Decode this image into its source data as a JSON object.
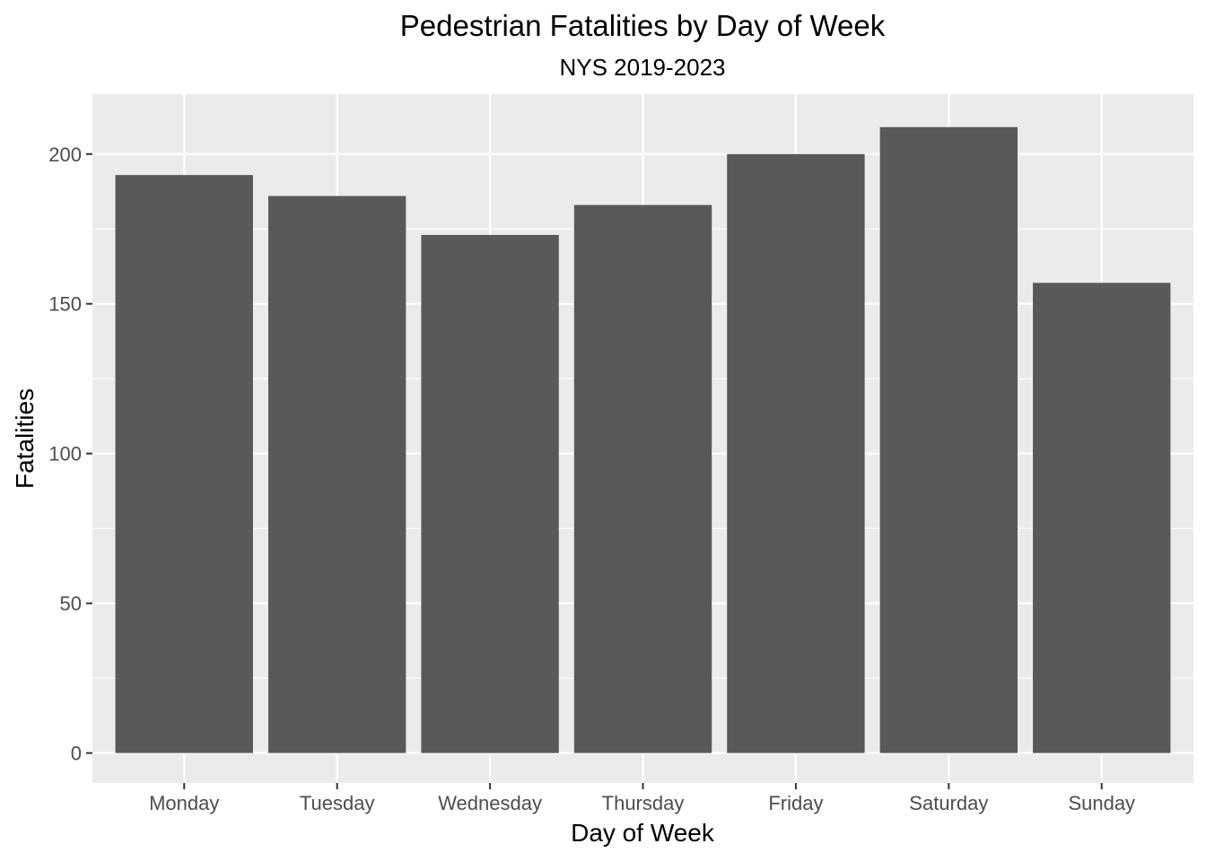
{
  "chart_data": {
    "type": "bar",
    "title": "Pedestrian Fatalities by Day of Week",
    "subtitle": "NYS 2019-2023",
    "xlabel": "Day of Week",
    "ylabel": "Fatalities",
    "categories": [
      "Monday",
      "Tuesday",
      "Wednesday",
      "Thursday",
      "Friday",
      "Saturday",
      "Sunday"
    ],
    "values": [
      193,
      186,
      173,
      183,
      200,
      209,
      157
    ],
    "ylim": [
      -10,
      220
    ],
    "yticks": [
      0,
      50,
      100,
      150,
      200
    ],
    "ytick_labels": [
      "0",
      "50",
      "100",
      "150",
      "200"
    ],
    "grid": true,
    "legend": "none",
    "colors": {
      "bar": "#595959",
      "panel": "#ebebeb",
      "grid": "#ffffff",
      "tick_text": "#4d4d4d",
      "tick_mark": "#333333"
    }
  }
}
